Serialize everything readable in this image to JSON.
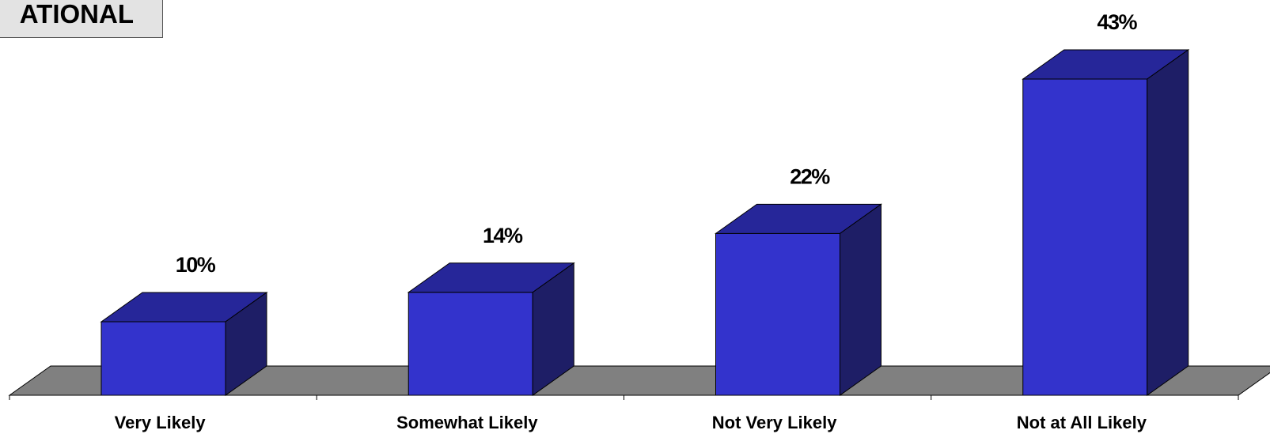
{
  "header": {
    "label": "ATIONAL"
  },
  "colors": {
    "bar_front": "#3333cc",
    "bar_top": "#262699",
    "bar_side": "#1e1e66",
    "floor": "#808080",
    "outline": "#000000"
  },
  "chart_data": {
    "type": "bar",
    "categories": [
      "Very Likely",
      "Somewhat Likely",
      "Not Very Likely",
      "Not at All Likely"
    ],
    "values": [
      10,
      14,
      22,
      43
    ],
    "value_labels": [
      "10%",
      "14%",
      "22%",
      "43%"
    ],
    "title": "",
    "xlabel": "",
    "ylabel": "",
    "ylim": [
      0,
      43
    ],
    "grid": false,
    "legend": "none",
    "style": "3d-column"
  }
}
